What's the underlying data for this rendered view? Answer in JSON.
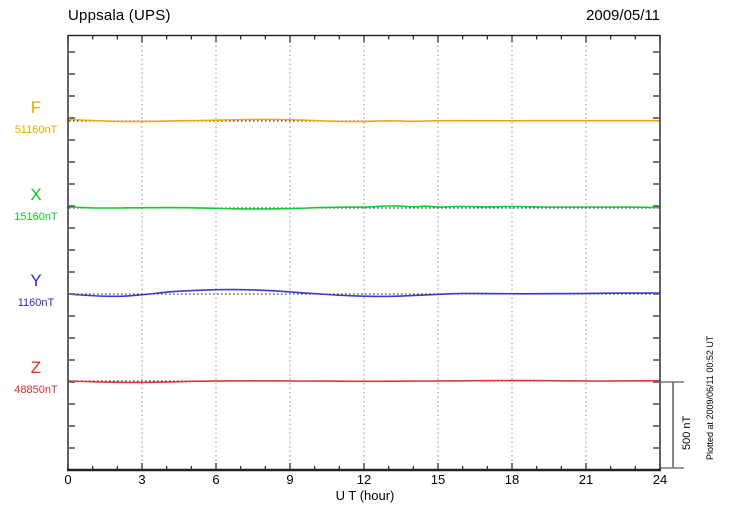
{
  "header": {
    "station": "Uppsala (UPS)",
    "date": "2009/05/11"
  },
  "axis": {
    "label": "U T (hour)",
    "ticks": [
      0,
      3,
      6,
      9,
      12,
      15,
      18,
      21,
      24
    ]
  },
  "side": {
    "scale_label": "500 nT",
    "plotted_at": "Plotted at 2009/06/11 00:52 UT"
  },
  "chart_data": {
    "type": "line",
    "title": "Uppsala (UPS)",
    "date": "2009/05/11",
    "xlabel": "U T (hour)",
    "x_range_hours": [
      0,
      24
    ],
    "x_ticks": [
      0,
      3,
      6,
      9,
      12,
      15,
      18,
      21,
      24
    ],
    "grid": "vertical dotted lines every 3 hours; dotted horizontal baseline per trace",
    "scale_bar_nT": 500,
    "scale_bar_label": "500 nT",
    "series": [
      {
        "name": "F",
        "color": "#EFA400",
        "baseline_label": "51160nT",
        "baseline_nT": 51160,
        "sample_interval_hours": 1,
        "deviation_nT": [
          9,
          3,
          -3,
          -3,
          0,
          2,
          5,
          8,
          10,
          8,
          3,
          -3,
          -4,
          3,
          -3,
          3,
          1,
          1,
          1,
          2,
          2,
          2,
          2,
          2,
          2
        ]
      },
      {
        "name": "X",
        "color": "#00CC22",
        "baseline_label": "15160nT",
        "baseline_nT": 15160,
        "sample_interval_hours": 0.5,
        "deviation_nT": [
          6,
          3,
          0,
          0,
          0,
          1,
          1,
          2,
          3,
          2,
          1,
          0,
          -2,
          -4,
          -5,
          -6,
          -6,
          -5,
          -3,
          -2,
          2,
          3,
          5,
          5,
          5,
          8,
          13,
          12,
          5,
          13,
          4,
          8,
          9,
          8,
          6,
          8,
          9,
          8,
          6,
          6,
          6,
          6,
          6,
          6,
          6,
          6,
          5,
          4,
          3
        ]
      },
      {
        "name": "Y",
        "color": "#2A2ACC",
        "baseline_label": "1160nT",
        "baseline_nT": 1160,
        "sample_interval_hours": 1,
        "deviation_nT": [
          0,
          -11,
          -15,
          -6,
          12,
          20,
          25,
          26,
          22,
          12,
          2,
          -8,
          -13,
          -15,
          -9,
          -2,
          4,
          3,
          1,
          1,
          2,
          3,
          5,
          5,
          6
        ]
      },
      {
        "name": "Z",
        "color": "#DD2A2A",
        "baseline_label": "48850nT",
        "baseline_nT": 48850,
        "sample_interval_hours": 1,
        "deviation_nT": [
          0,
          -4,
          -9,
          -9,
          -6,
          -2,
          0,
          1,
          1,
          0,
          0,
          -1,
          -2,
          -2,
          0,
          0,
          1,
          3,
          3,
          2,
          1,
          0,
          0,
          1,
          1
        ]
      }
    ]
  }
}
